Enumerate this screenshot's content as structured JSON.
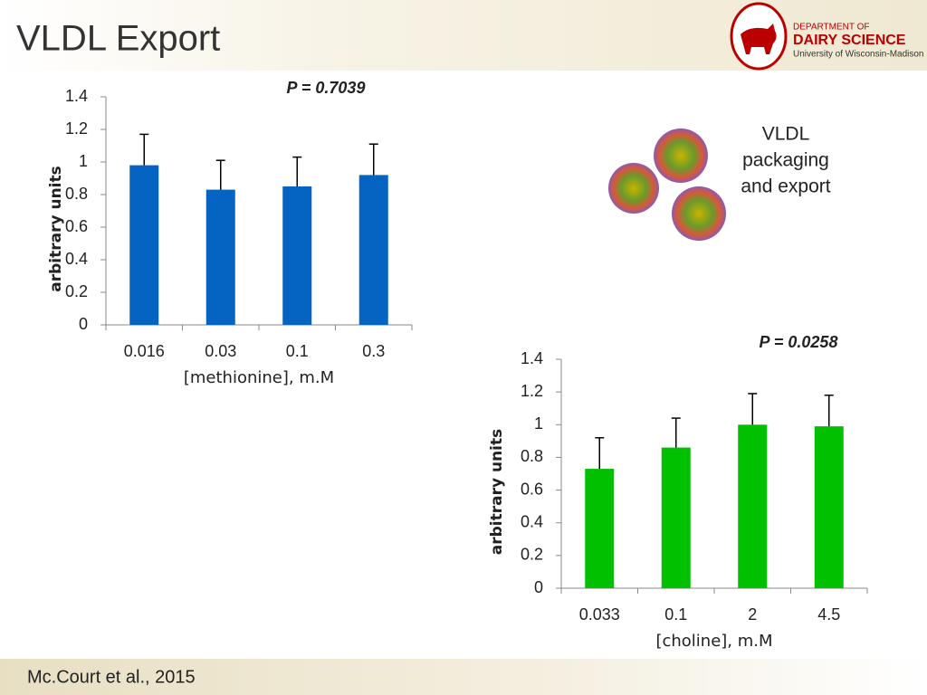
{
  "slide": {
    "title": "VLDL Export",
    "logo_top": "DEPARTMENT OF",
    "logo_main": "DAIRY SCIENCE",
    "logo_sub": "University of Wisconsin-Madison",
    "caption": [
      "VLDL",
      "packaging",
      "and export"
    ],
    "citation": "Mc.Court et al., 2015"
  },
  "chart_data": [
    {
      "type": "bar",
      "annotation": "P = 0.7039",
      "x_label": "[methionine], m.M",
      "y_label": "arbitrary units",
      "categories": [
        "0.016",
        "0.03",
        "0.1",
        "0.3"
      ],
      "values": [
        0.98,
        0.83,
        0.85,
        0.92
      ],
      "errors": [
        0.19,
        0.18,
        0.18,
        0.19
      ],
      "color": "#0563c1",
      "ylim": [
        0,
        1.4
      ],
      "yticks": [
        0,
        0.2,
        0.4,
        0.6,
        0.8,
        1,
        1.2,
        1.4
      ],
      "grid": false
    },
    {
      "type": "bar",
      "annotation": "P = 0.0258",
      "x_label": "[choline], m.M",
      "y_label": "arbitrary units",
      "categories": [
        "0.033",
        "0.1",
        "2",
        "4.5"
      ],
      "values": [
        0.73,
        0.86,
        1.0,
        0.99
      ],
      "errors": [
        0.19,
        0.18,
        0.19,
        0.19
      ],
      "color": "#00c000",
      "ylim": [
        0,
        1.4
      ],
      "yticks": [
        0,
        0.2,
        0.4,
        0.6,
        0.8,
        1,
        1.2,
        1.4
      ],
      "grid": false
    }
  ]
}
